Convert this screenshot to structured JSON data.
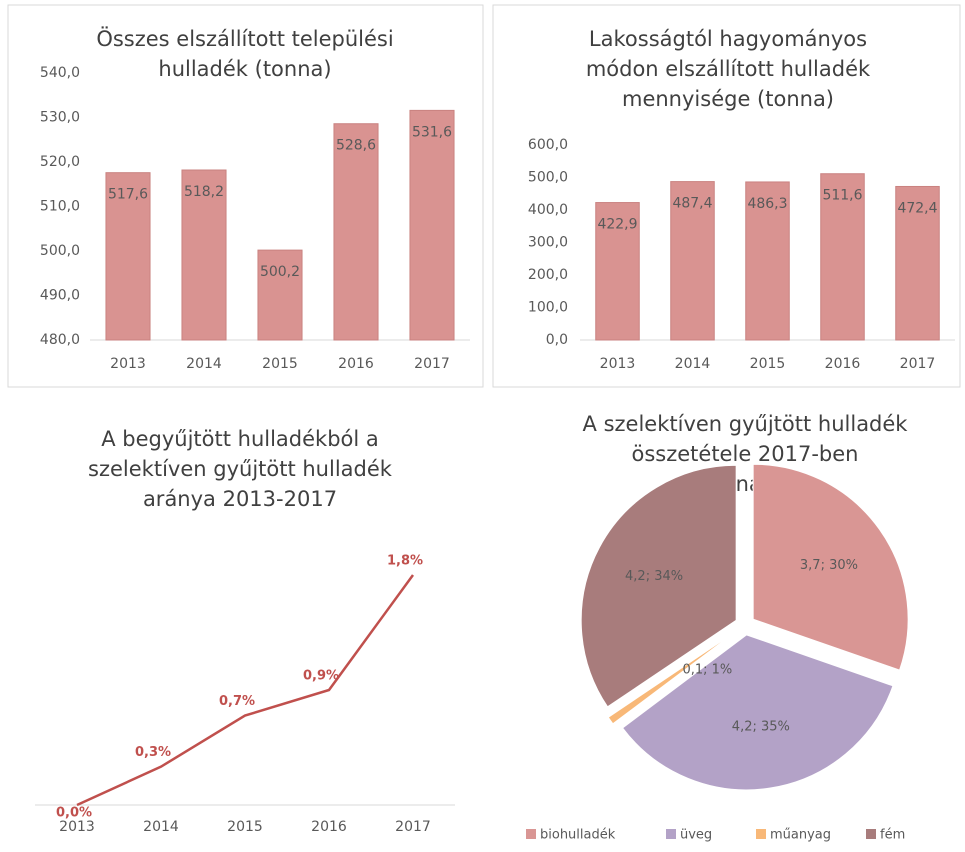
{
  "chart_data": [
    {
      "type": "bar",
      "title": [
        "Összes elszállított települési",
        "hulladék (tonna)"
      ],
      "categories": [
        "2013",
        "2014",
        "2015",
        "2016",
        "2017"
      ],
      "values": [
        517.6,
        518.2,
        500.2,
        528.6,
        531.6
      ],
      "value_labels": [
        "517,6",
        "518,2",
        "500,2",
        "528,6",
        "531,6"
      ],
      "color": "#d99391",
      "ylim": [
        480,
        540
      ],
      "yticks": [
        {
          "value": 480,
          "label": "480,0"
        },
        {
          "value": 490,
          "label": "490,0"
        },
        {
          "value": 500,
          "label": "500,0"
        },
        {
          "value": 510,
          "label": "510,0"
        },
        {
          "value": 520,
          "label": "520,0"
        },
        {
          "value": 530,
          "label": "530,0"
        },
        {
          "value": 540,
          "label": "540,0"
        }
      ]
    },
    {
      "type": "bar",
      "title": [
        "Lakosságtól hagyományos",
        "módon elszállított hulladék",
        "mennyisége (tonna)"
      ],
      "categories": [
        "2013",
        "2014",
        "2015",
        "2016",
        "2017"
      ],
      "values": [
        422.9,
        487.4,
        486.3,
        511.6,
        472.4
      ],
      "value_labels": [
        "422,9",
        "487,4",
        "486,3",
        "511,6",
        "472,4"
      ],
      "color": "#d99391",
      "ylim": [
        0,
        600
      ],
      "yticks": [
        {
          "value": 0,
          "label": "0,0"
        },
        {
          "value": 100,
          "label": "100,0"
        },
        {
          "value": 200,
          "label": "200,0"
        },
        {
          "value": 300,
          "label": "300,0"
        },
        {
          "value": 400,
          "label": "400,0"
        },
        {
          "value": 500,
          "label": "500,0"
        },
        {
          "value": 600,
          "label": "600,0"
        }
      ]
    },
    {
      "type": "line",
      "title": [
        "A begyűjtött hulladékból a",
        "szelektíven gyűjtött hulladék",
        "aránya 2013-2017"
      ],
      "categories": [
        "2013",
        "2014",
        "2015",
        "2016",
        "2017"
      ],
      "values": [
        0.0,
        0.3,
        0.7,
        0.9,
        1.8
      ],
      "value_labels": [
        "0,0%",
        "0,3%",
        "0,7%",
        "0,9%",
        "1,8%"
      ],
      "color": "#c0504d"
    },
    {
      "type": "pie",
      "title": [
        "A szelektíven gyűjtött hulladék",
        "összetétele 2017-ben",
        "(tonna;%)"
      ],
      "categories": [
        "biohulladék",
        "üveg",
        "műanyag",
        "fém"
      ],
      "values": [
        3.7,
        4.2,
        0.1,
        4.2
      ],
      "value_labels": [
        "3,7; 30%",
        "4,2; 35%",
        "0,1; 1%",
        "4,2; 34%"
      ],
      "colors": [
        "#d99694",
        "#b3a2c7",
        "#f8b878",
        "#a87c7c"
      ]
    }
  ]
}
